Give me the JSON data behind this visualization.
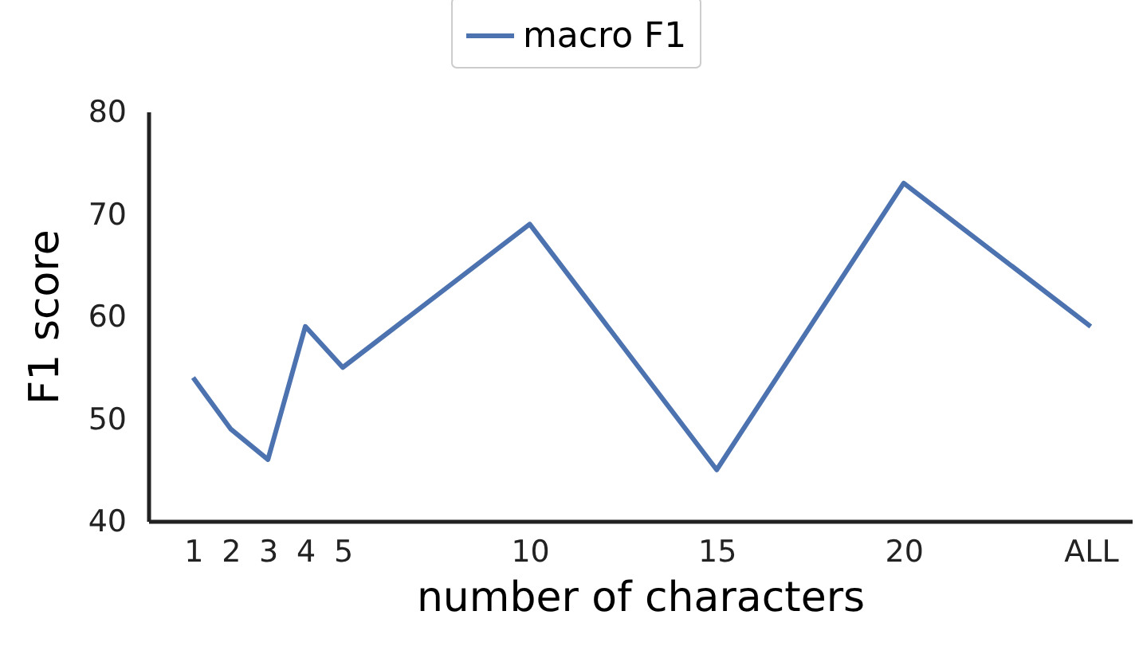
{
  "chart_data": {
    "type": "line",
    "xlabel": "number of characters",
    "ylabel": "F1 score",
    "x": [
      1,
      2,
      3,
      4,
      5,
      10,
      15,
      20,
      25
    ],
    "series": [
      {
        "name": "macro F1",
        "color": "#4c72b0",
        "values": [
          54,
          49,
          46,
          59,
          55,
          69,
          45,
          73,
          59
        ]
      }
    ],
    "xlim": [
      -0.2,
      26.1
    ],
    "xticks": [
      1,
      2,
      3,
      4,
      5,
      10,
      15,
      20,
      {
        "value": 25,
        "label": "ALL"
      }
    ],
    "ylim": [
      40,
      80
    ],
    "yticks": [
      40,
      50,
      60,
      70,
      80
    ],
    "grid": false,
    "legend": "top",
    "marker": "none",
    "line_style": "solid"
  }
}
